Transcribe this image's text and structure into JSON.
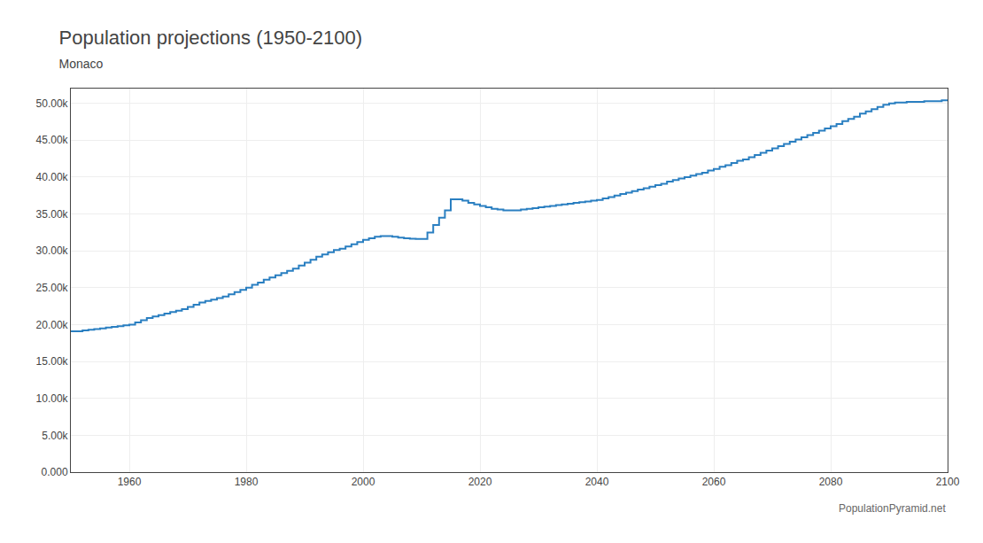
{
  "chart_data": {
    "type": "step",
    "title": "Population projections (1950-2100)",
    "subtitle": "Monaco",
    "annotations": [
      "PopulationPyramid.net"
    ],
    "color": "#2a7fc1",
    "grid": true,
    "xlim": [
      1950,
      2100
    ],
    "xticks": [
      1960,
      1980,
      2000,
      2020,
      2040,
      2060,
      2080,
      2100
    ],
    "ylim": [
      0,
      52000
    ],
    "yticks": [
      {
        "value": 0,
        "label": "0.000"
      },
      {
        "value": 5000,
        "label": "5.00k"
      },
      {
        "value": 10000,
        "label": "10.00k"
      },
      {
        "value": 15000,
        "label": "15.00k"
      },
      {
        "value": 20000,
        "label": "20.00k"
      },
      {
        "value": 25000,
        "label": "25.00k"
      },
      {
        "value": 30000,
        "label": "30.00k"
      },
      {
        "value": 35000,
        "label": "35.00k"
      },
      {
        "value": 40000,
        "label": "40.00k"
      },
      {
        "value": 45000,
        "label": "45.00k"
      },
      {
        "value": 50000,
        "label": "50.00k"
      }
    ],
    "x": [
      1950,
      1951,
      1952,
      1953,
      1954,
      1955,
      1956,
      1957,
      1958,
      1959,
      1960,
      1961,
      1962,
      1963,
      1964,
      1965,
      1966,
      1967,
      1968,
      1969,
      1970,
      1971,
      1972,
      1973,
      1974,
      1975,
      1976,
      1977,
      1978,
      1979,
      1980,
      1981,
      1982,
      1983,
      1984,
      1985,
      1986,
      1987,
      1988,
      1989,
      1990,
      1991,
      1992,
      1993,
      1994,
      1995,
      1996,
      1997,
      1998,
      1999,
      2000,
      2001,
      2002,
      2003,
      2004,
      2005,
      2006,
      2007,
      2008,
      2009,
      2010,
      2011,
      2012,
      2013,
      2014,
      2015,
      2016,
      2017,
      2018,
      2019,
      2020,
      2021,
      2022,
      2023,
      2024,
      2025,
      2026,
      2027,
      2028,
      2029,
      2030,
      2031,
      2032,
      2033,
      2034,
      2035,
      2036,
      2037,
      2038,
      2039,
      2040,
      2041,
      2042,
      2043,
      2044,
      2045,
      2046,
      2047,
      2048,
      2049,
      2050,
      2051,
      2052,
      2053,
      2054,
      2055,
      2056,
      2057,
      2058,
      2059,
      2060,
      2061,
      2062,
      2063,
      2064,
      2065,
      2066,
      2067,
      2068,
      2069,
      2070,
      2071,
      2072,
      2073,
      2074,
      2075,
      2076,
      2077,
      2078,
      2079,
      2080,
      2081,
      2082,
      2083,
      2084,
      2085,
      2086,
      2087,
      2088,
      2089,
      2090,
      2091,
      2092,
      2093,
      2094,
      2095,
      2096,
      2097,
      2098,
      2099,
      2100
    ],
    "values": [
      19100,
      19100,
      19200,
      19300,
      19400,
      19500,
      19600,
      19700,
      19800,
      19900,
      20000,
      20300,
      20600,
      20900,
      21100,
      21300,
      21500,
      21700,
      21900,
      22100,
      22400,
      22700,
      23000,
      23200,
      23400,
      23600,
      23800,
      24100,
      24400,
      24700,
      25000,
      25400,
      25700,
      26100,
      26400,
      26700,
      27000,
      27300,
      27600,
      28000,
      28400,
      28800,
      29200,
      29500,
      29800,
      30100,
      30300,
      30600,
      30900,
      31200,
      31500,
      31700,
      31900,
      32000,
      32000,
      31900,
      31800,
      31700,
      31650,
      31600,
      31600,
      32500,
      33500,
      34500,
      35500,
      37000,
      37000,
      36800,
      36500,
      36300,
      36100,
      35900,
      35700,
      35600,
      35500,
      35500,
      35500,
      35600,
      35700,
      35800,
      35900,
      36000,
      36100,
      36200,
      36300,
      36400,
      36500,
      36600,
      36700,
      36800,
      36900,
      37100,
      37300,
      37500,
      37700,
      37900,
      38100,
      38300,
      38500,
      38700,
      38900,
      39100,
      39400,
      39600,
      39800,
      40000,
      40200,
      40400,
      40600,
      40900,
      41100,
      41400,
      41600,
      41900,
      42200,
      42400,
      42700,
      43000,
      43300,
      43600,
      43900,
      44200,
      44500,
      44800,
      45100,
      45400,
      45700,
      46000,
      46300,
      46600,
      46900,
      47200,
      47600,
      47900,
      48200,
      48600,
      48900,
      49200,
      49500,
      49800,
      50000,
      50100,
      50100,
      50200,
      50200,
      50200,
      50300,
      50300,
      50300,
      50400,
      50400
    ]
  }
}
